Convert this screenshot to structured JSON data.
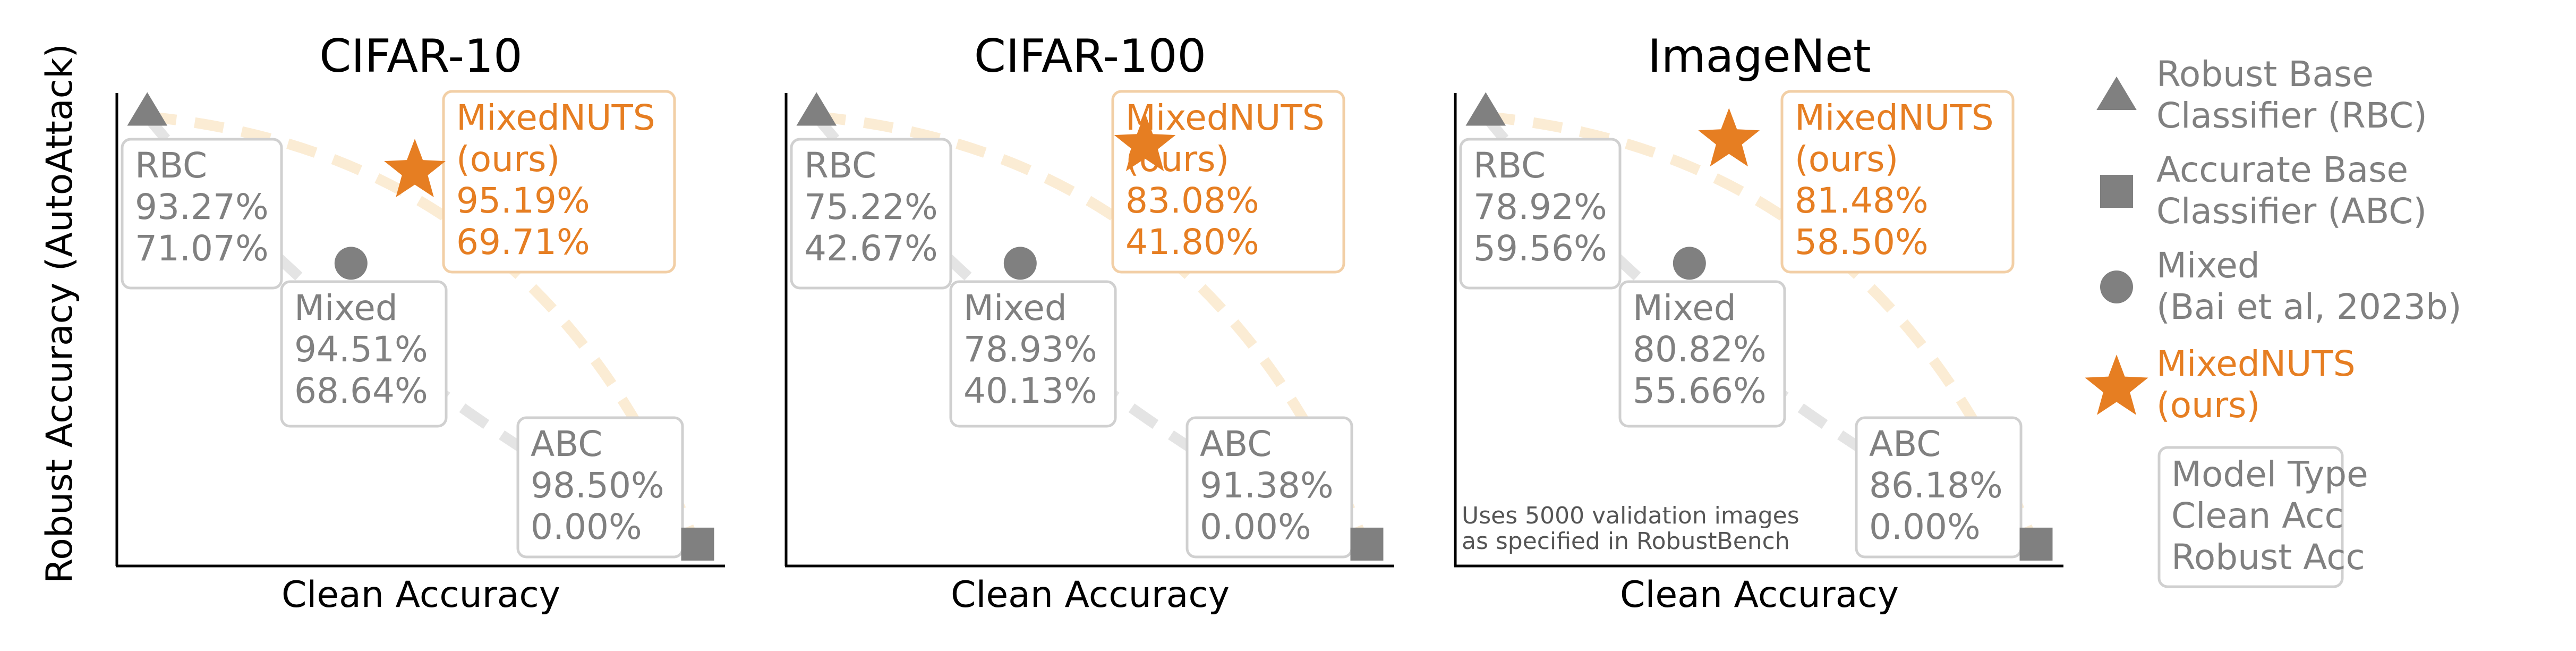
{
  "figure": {
    "ylabel": "Robust Accuracy (AutoAttack)",
    "xlabel": "Clean Accuracy"
  },
  "colors": {
    "gray": "#808080",
    "orange": "#E67E22",
    "box_border_gray": "#d0d0d0",
    "box_border_orange": "#f2cfa6",
    "dash_gray": "#e4e4e4",
    "dash_orange": "#fbecd4"
  },
  "chart_data": [
    {
      "type": "scatter",
      "title": "CIFAR-10",
      "xlabel": "Clean Accuracy",
      "ylabel": "Robust Accuracy (AutoAttack)",
      "points": [
        {
          "model": "RBC",
          "marker": "triangle",
          "clean_acc": 93.27,
          "robust_acc": 71.07,
          "box_lines": [
            "RBC",
            "93.27%",
            "71.07%"
          ]
        },
        {
          "model": "Mixed",
          "marker": "circle",
          "clean_acc": 94.51,
          "robust_acc": 68.64,
          "box_lines": [
            "Mixed",
            "94.51%",
            "68.64%"
          ]
        },
        {
          "model": "ABC",
          "marker": "square",
          "clean_acc": 98.5,
          "robust_acc": 0.0,
          "box_lines": [
            "ABC",
            "98.50%",
            "0.00%"
          ]
        },
        {
          "model": "MixedNUTS",
          "marker": "star",
          "clean_acc": 95.19,
          "robust_acc": 69.71,
          "box_lines": [
            "MixedNUTS",
            "(ours)",
            "95.19%",
            "69.71%"
          ]
        }
      ]
    },
    {
      "type": "scatter",
      "title": "CIFAR-100",
      "xlabel": "Clean Accuracy",
      "ylabel": "Robust Accuracy (AutoAttack)",
      "points": [
        {
          "model": "RBC",
          "marker": "triangle",
          "clean_acc": 75.22,
          "robust_acc": 42.67,
          "box_lines": [
            "RBC",
            "75.22%",
            "42.67%"
          ]
        },
        {
          "model": "Mixed",
          "marker": "circle",
          "clean_acc": 78.93,
          "robust_acc": 40.13,
          "box_lines": [
            "Mixed",
            "78.93%",
            "40.13%"
          ]
        },
        {
          "model": "ABC",
          "marker": "square",
          "clean_acc": 91.38,
          "robust_acc": 0.0,
          "box_lines": [
            "ABC",
            "91.38%",
            "0.00%"
          ]
        },
        {
          "model": "MixedNUTS",
          "marker": "star",
          "clean_acc": 83.08,
          "robust_acc": 41.8,
          "box_lines": [
            "MixedNUTS",
            "(ours)",
            "83.08%",
            "41.80%"
          ]
        }
      ]
    },
    {
      "type": "scatter",
      "title": "ImageNet",
      "xlabel": "Clean Accuracy",
      "ylabel": "Robust Accuracy (AutoAttack)",
      "annotation": [
        "Uses 5000 validation images",
        "as specified in RobustBench"
      ],
      "points": [
        {
          "model": "RBC",
          "marker": "triangle",
          "clean_acc": 78.92,
          "robust_acc": 59.56,
          "box_lines": [
            "RBC",
            "78.92%",
            "59.56%"
          ]
        },
        {
          "model": "Mixed",
          "marker": "circle",
          "clean_acc": 80.82,
          "robust_acc": 55.66,
          "box_lines": [
            "Mixed",
            "80.82%",
            "55.66%"
          ]
        },
        {
          "model": "ABC",
          "marker": "square",
          "clean_acc": 86.18,
          "robust_acc": 0.0,
          "box_lines": [
            "ABC",
            "86.18%",
            "0.00%"
          ]
        },
        {
          "model": "MixedNUTS",
          "marker": "star",
          "clean_acc": 81.48,
          "robust_acc": 58.5,
          "box_lines": [
            "MixedNUTS",
            "(ours)",
            "81.48%",
            "58.50%"
          ]
        }
      ]
    }
  ],
  "legend": {
    "items": [
      {
        "marker": "triangle",
        "lines": [
          "Robust Base",
          "Classifier (RBC)"
        ]
      },
      {
        "marker": "square",
        "lines": [
          "Accurate Base",
          "Classifier (ABC)"
        ]
      },
      {
        "marker": "circle",
        "lines": [
          "Mixed",
          "(Bai et al, 2023b)"
        ]
      },
      {
        "marker": "star",
        "lines": [
          "MixedNUTS",
          "(ours)"
        ]
      }
    ],
    "key_box": [
      "Model Type",
      "Clean Acc",
      "Robust Acc"
    ]
  }
}
